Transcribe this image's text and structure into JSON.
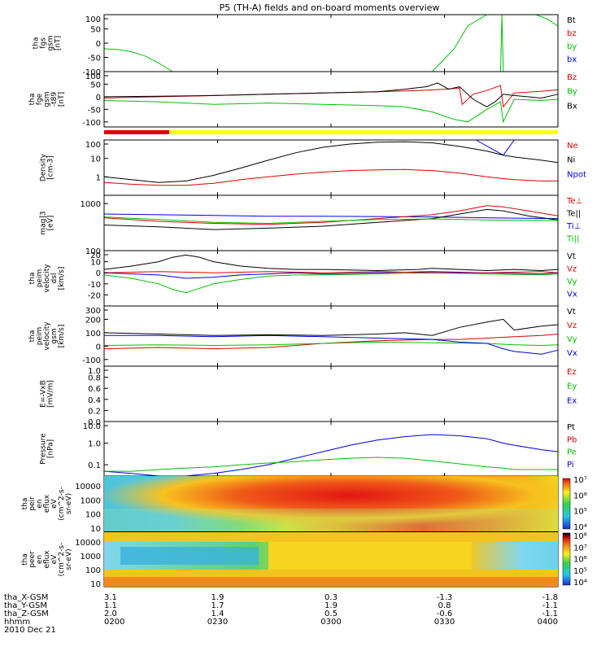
{
  "chart_data": {
    "type": "line",
    "title": "P5 (TH-A) fields and on-board moments overview",
    "date": "2010 Dec 21",
    "colors": {
      "black": "#000000",
      "red": "#e00000",
      "green": "#00c000",
      "blue": "#0000e0",
      "yellow": "#ffff00"
    },
    "panels": [
      {
        "id": "fgs",
        "ylabel": [
          "tha",
          "fgs",
          "gsm",
          "[nT]"
        ],
        "scale": "linear",
        "ylim": [
          -100,
          100
        ],
        "yticks": [
          "100",
          "50",
          "0",
          "-50",
          "-100"
        ],
        "legend": [
          "Bt",
          "bz",
          "by",
          "bx"
        ],
        "series": [
          {
            "name": "by",
            "color": "green",
            "t": [
              0,
              5,
              10,
              15,
              20,
              25
            ],
            "v": [
              -20,
              -22,
              -30,
              -45,
              -70,
              -100
            ]
          },
          {
            "name": "by",
            "color": "green",
            "t": [
              120,
              128,
              133,
              140,
              145
            ],
            "v": [
              -100,
              -20,
              60,
              110,
              110
            ]
          },
          {
            "name": "by",
            "color": "green",
            "t": [
              145,
              145.5,
              146
            ],
            "v": [
              -100,
              110,
              -100
            ]
          },
          {
            "name": "by",
            "color": "green",
            "t": [
              158,
              162,
              166
            ],
            "v": [
              110,
              85,
              60
            ]
          }
        ]
      },
      {
        "id": "fge",
        "ylabel": [
          "tha",
          "fge",
          "gsm",
          "-t89",
          "[nT]"
        ],
        "scale": "linear",
        "ylim": [
          -120,
          100
        ],
        "yticks": [
          "100",
          "50",
          "0",
          "-50",
          "-100"
        ],
        "legend": [
          "Bz",
          "By",
          "Bx"
        ],
        "series": [
          {
            "name": "Bz",
            "color": "red",
            "t": [
              0,
              20,
              40,
              60,
              80,
              100,
              115,
              125,
              130,
              131,
              135,
              140,
              145,
              146,
              150,
              160,
              166
            ],
            "v": [
              -5,
              0,
              5,
              10,
              15,
              20,
              25,
              30,
              35,
              -30,
              10,
              25,
              45,
              -40,
              15,
              22,
              28
            ]
          },
          {
            "name": "Bx",
            "color": "black",
            "t": [
              0,
              20,
              40,
              60,
              80,
              100,
              110,
              118,
              122,
              126,
              130,
              135,
              140,
              143,
              146,
              150,
              160,
              166
            ],
            "v": [
              0,
              2,
              5,
              10,
              15,
              20,
              30,
              40,
              55,
              30,
              40,
              -10,
              -40,
              -20,
              10,
              5,
              -5,
              10
            ]
          },
          {
            "name": "By",
            "color": "green",
            "t": [
              0,
              20,
              40,
              60,
              80,
              100,
              110,
              120,
              128,
              133,
              140,
              145,
              146,
              150,
              160,
              166
            ],
            "v": [
              -15,
              -20,
              -30,
              -25,
              -30,
              -35,
              -40,
              -60,
              -90,
              -100,
              -50,
              -20,
              -100,
              -10,
              -15,
              -10
            ]
          }
        ]
      },
      {
        "id": "density",
        "ylabel": [
          "Density",
          "[cm-3]"
        ],
        "scale": "log",
        "ylim": [
          0.1,
          100
        ],
        "yticks": [
          "100",
          "10",
          "1"
        ],
        "legend": [
          "Ne",
          "Ni",
          "Npot"
        ],
        "series": [
          {
            "name": "Ni",
            "color": "black",
            "t": [
              0,
              10,
              20,
              30,
              40,
              50,
              60,
              70,
              80,
              90,
              100,
              110,
              120,
              130,
              140,
              146,
              150,
              160,
              166
            ],
            "v": [
              1.0,
              0.7,
              0.5,
              0.6,
              1.2,
              3,
              8,
              20,
              40,
              60,
              75,
              80,
              70,
              45,
              25,
              15,
              12,
              8,
              6
            ]
          },
          {
            "name": "Ne",
            "color": "red",
            "t": [
              0,
              10,
              20,
              30,
              40,
              50,
              60,
              70,
              80,
              90,
              100,
              110,
              120,
              130,
              140,
              146,
              150,
              160,
              166
            ],
            "v": [
              0.5,
              0.4,
              0.35,
              0.35,
              0.45,
              0.7,
              1.0,
              1.4,
              1.8,
              2.2,
              2.4,
              2.5,
              2.2,
              1.6,
              1.0,
              0.8,
              0.7,
              0.6,
              0.6
            ]
          },
          {
            "name": "Npot",
            "color": "blue",
            "t": [
              136,
              146,
              150
            ],
            "v": [
              100,
              15,
              100
            ]
          }
        ]
      },
      {
        "id": "temp",
        "ylabel": [
          "mag]3",
          "[eV]"
        ],
        "scale": "log",
        "ylim": [
          100,
          1500
        ],
        "yticks": [
          "1000",
          "100"
        ],
        "legend": [
          "Te⊥",
          "Te||",
          "Ti⊥",
          "Ti||"
        ],
        "series": [
          {
            "name": "Ti⊥",
            "color": "blue",
            "t": [
              0,
              20,
              40,
              60,
              80,
              100,
              120,
              140,
              150,
              166
            ],
            "v": [
              600,
              580,
              560,
              540,
              540,
              530,
              520,
              500,
              490,
              480
            ]
          },
          {
            "name": "Te||",
            "color": "black",
            "t": [
              0,
              20,
              40,
              60,
              80,
              100,
              120,
              130,
              140,
              146,
              155,
              166
            ],
            "v": [
              350,
              320,
              280,
              300,
              330,
              400,
              480,
              600,
              750,
              700,
              550,
              450
            ]
          },
          {
            "name": "Te⊥",
            "color": "red",
            "t": [
              0,
              20,
              40,
              60,
              80,
              100,
              120,
              130,
              140,
              146,
              155,
              166
            ],
            "v": [
              500,
              420,
              380,
              360,
              400,
              480,
              580,
              700,
              900,
              850,
              700,
              550
            ]
          },
          {
            "name": "Ti||",
            "color": "green",
            "t": [
              0,
              20,
              40,
              60,
              80,
              100,
              120,
              140,
              150,
              166
            ],
            "v": [
              520,
              460,
              400,
              380,
              420,
              460,
              470,
              450,
              440,
              440
            ]
          }
        ]
      },
      {
        "id": "velocity_dsl",
        "ylabel": [
          "tha",
          "peim",
          "velocity",
          "dsl",
          "[km/s]"
        ],
        "scale": "linear",
        "ylim": [
          -30,
          20
        ],
        "yticks": [
          "20",
          "10",
          "0",
          "-10",
          "-20"
        ],
        "legend": [
          "Vt",
          "Vz",
          "Vy",
          "Vx"
        ],
        "series": [
          {
            "name": "Vx",
            "color": "blue",
            "t": [
              0,
              20,
              30,
              40,
              50,
              60,
              70,
              80,
              100,
              120,
              140,
              160,
              166
            ],
            "v": [
              0,
              -2,
              -5,
              -4,
              -2,
              -1,
              0,
              -1,
              0,
              1,
              0,
              -1,
              0
            ]
          },
          {
            "name": "Vy",
            "color": "green",
            "t": [
              0,
              10,
              20,
              25,
              30,
              35,
              40,
              50,
              60,
              70,
              80,
              100,
              120,
              140,
              160,
              166
            ],
            "v": [
              -2,
              -5,
              -10,
              -15,
              -18,
              -14,
              -10,
              -6,
              -3,
              -2,
              -2,
              -1,
              0,
              -1,
              -2,
              -1
            ]
          },
          {
            "name": "Vz",
            "color": "red",
            "t": [
              0,
              20,
              40,
              60,
              80,
              100,
              120,
              140,
              160,
              166
            ],
            "v": [
              0,
              1,
              0,
              1,
              0,
              1,
              0,
              0,
              1,
              0
            ]
          },
          {
            "name": "Vt",
            "color": "black",
            "t": [
              0,
              10,
              20,
              25,
              30,
              35,
              40,
              50,
              60,
              70,
              80,
              100,
              115,
              120,
              130,
              140,
              150,
              160,
              166
            ],
            "v": [
              3,
              6,
              10,
              14,
              16,
              14,
              10,
              6,
              4,
              3,
              3,
              2,
              3,
              4,
              3,
              2,
              3,
              2,
              3
            ]
          }
        ]
      },
      {
        "id": "velocity_gsm",
        "ylabel": [
          "tha",
          "peim",
          "velocity",
          "gsm",
          "[km/s]"
        ],
        "scale": "linear",
        "ylim": [
          -150,
          300
        ],
        "yticks": [
          "300",
          "200",
          "100",
          "0",
          "-100"
        ],
        "legend": [
          "Vt",
          "Vz",
          "Vy",
          "Vx"
        ],
        "series": [
          {
            "name": "Vz",
            "color": "red",
            "t": [
              0,
              20,
              40,
              60,
              80,
              100,
              120,
              130,
              140,
              150,
              160,
              166
            ],
            "v": [
              -20,
              -10,
              -20,
              -10,
              20,
              40,
              50,
              50,
              60,
              70,
              80,
              90
            ]
          },
          {
            "name": "Vy",
            "color": "green",
            "t": [
              0,
              20,
              40,
              60,
              80,
              100,
              120,
              140,
              150,
              160,
              166
            ],
            "v": [
              5,
              10,
              5,
              10,
              20,
              30,
              25,
              20,
              10,
              5,
              10
            ]
          },
          {
            "name": "Vx",
            "color": "blue",
            "t": [
              0,
              20,
              40,
              60,
              80,
              100,
              120,
              130,
              140,
              146,
              150,
              160,
              166
            ],
            "v": [
              80,
              80,
              70,
              80,
              70,
              60,
              50,
              30,
              20,
              -20,
              -40,
              -60,
              -30
            ]
          },
          {
            "name": "Vt",
            "color": "black",
            "t": [
              0,
              20,
              40,
              60,
              80,
              100,
              110,
              120,
              130,
              140,
              146,
              150,
              160,
              166
            ],
            "v": [
              100,
              90,
              80,
              85,
              80,
              90,
              100,
              80,
              140,
              180,
              200,
              120,
              150,
              160
            ]
          }
        ]
      },
      {
        "id": "efield",
        "ylabel": [
          "E=-VxB",
          "[mV/m]"
        ],
        "scale": "linear",
        "ylim": [
          0,
          1
        ],
        "yticks": [
          "1.0",
          "0.8",
          "0.6",
          "0.4",
          "0.2",
          "0.0"
        ],
        "legend": [
          "Ez",
          "Ey",
          "Ex"
        ],
        "series": []
      },
      {
        "id": "pressure",
        "ylabel": [
          "Pressure",
          "[nPa]"
        ],
        "scale": "log",
        "ylim": [
          0.03,
          10
        ],
        "yticks": [
          "10.0",
          "1.0",
          "0.1"
        ],
        "legend": [
          "Pt",
          "Pb",
          "Pe",
          "Pi"
        ],
        "series": [
          {
            "name": "Pi",
            "color": "blue",
            "t": [
              0,
              10,
              20,
              30,
              40,
              50,
              60,
              70,
              80,
              90,
              100,
              110,
              120,
              130,
              140,
              146,
              150,
              160,
              166
            ],
            "v": [
              0.05,
              0.04,
              0.03,
              0.03,
              0.04,
              0.06,
              0.1,
              0.2,
              0.4,
              0.8,
              1.4,
              2.0,
              2.5,
              2.2,
              1.6,
              1.0,
              0.8,
              0.5,
              0.4
            ]
          },
          {
            "name": "Pe",
            "color": "green",
            "t": [
              0,
              10,
              20,
              30,
              40,
              50,
              60,
              70,
              80,
              90,
              100,
              110,
              120,
              130,
              140,
              146,
              150,
              160,
              166
            ],
            "v": [
              0.05,
              0.05,
              0.06,
              0.07,
              0.08,
              0.1,
              0.12,
              0.14,
              0.17,
              0.2,
              0.22,
              0.2,
              0.15,
              0.11,
              0.08,
              0.07,
              0.06,
              0.06,
              0.06
            ]
          }
        ]
      },
      {
        "id": "peir_spec",
        "type": "heatmap",
        "ylabel": [
          "tha",
          "peir",
          "en",
          "eflux",
          "eV",
          "(cm^2-s-",
          "sr-eV)"
        ],
        "scale": "log",
        "yticks": [
          "10000",
          "1000",
          "100",
          "10"
        ],
        "colorbar": [
          "10⁷",
          "10⁶",
          "10⁵",
          "10⁴"
        ]
      },
      {
        "id": "peer_spec",
        "type": "heatmap",
        "ylabel": [
          "tha",
          "peer",
          "en",
          "eflux",
          "eV",
          "(cm^2-s-",
          "sr-eV)"
        ],
        "scale": "log",
        "yticks": [
          "10000",
          "1000",
          "100",
          "10"
        ],
        "colorbar": [
          "10⁸",
          "10⁷",
          "10⁶",
          "10⁵",
          "10⁴"
        ]
      }
    ],
    "ephemeris": {
      "labels": [
        "tha_X-GSM",
        "tha_Y-GSM",
        "tha_Z-GSM",
        "hhmm"
      ],
      "columns": [
        [
          "3.1",
          "1.1",
          "2.0",
          "0200"
        ],
        [
          "1.9",
          "1.7",
          "1.4",
          "0230"
        ],
        [
          "0.3",
          "1.9",
          "0.5",
          "0300"
        ],
        [
          "-1.3",
          "0.8",
          "-0.6",
          "0330"
        ],
        [
          "-1.8",
          "-1.1",
          "-1.1",
          "0400"
        ]
      ]
    }
  }
}
